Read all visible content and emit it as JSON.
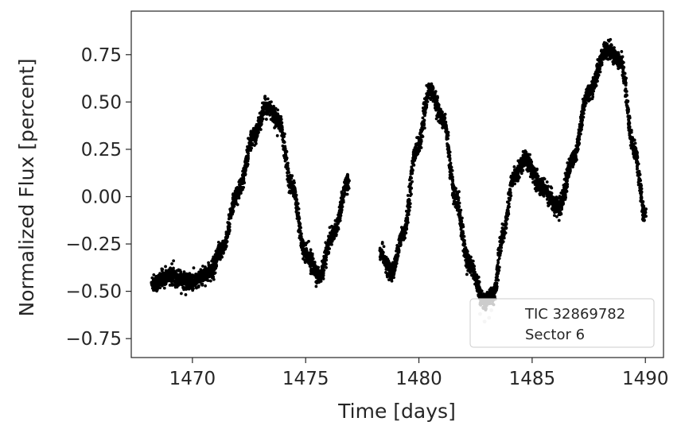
{
  "chart_data": {
    "type": "scatter",
    "title": "",
    "xlabel": "Time [days]",
    "ylabel": "Normalized Flux [percent]",
    "xlim": [
      1467.3,
      1490.8
    ],
    "ylim": [
      -0.85,
      0.98
    ],
    "x_ticks": [
      1470,
      1475,
      1480,
      1485,
      1490
    ],
    "x_tick_labels": [
      "1470",
      "1475",
      "1480",
      "1485",
      "1490"
    ],
    "y_ticks": [
      0.75,
      0.5,
      0.25,
      0.0,
      -0.25,
      -0.5,
      -0.75
    ],
    "y_tick_labels": [
      "0.75",
      "0.50",
      "0.25",
      "0.00",
      "−0.25",
      "−0.50",
      "−0.75"
    ],
    "grid": false,
    "legend": {
      "placement": "lower-right",
      "entries": [
        "TIC 32869782",
        "Sector 6"
      ]
    },
    "colors": {
      "points": "#000000",
      "highlight": "#cccccc",
      "axis": "#262626"
    },
    "series": [
      {
        "marker": "dot",
        "x": [
          1468.2,
          1469.0,
          1470.0,
          1470.8,
          1471.3,
          1472.0,
          1472.7,
          1473.3,
          1473.8,
          1474.4,
          1475.0,
          1475.6,
          1476.2,
          1476.9,
          1478.3,
          1478.8,
          1479.3,
          1479.9,
          1480.5,
          1481.1,
          1481.6,
          1482.2,
          1482.9,
          1483.3,
          1483.7,
          1484.2,
          1484.7,
          1485.4,
          1486.2,
          1486.8,
          1487.5,
          1488.3,
          1488.9,
          1489.5,
          1490.0
        ],
        "y": [
          -0.46,
          -0.42,
          -0.45,
          -0.4,
          -0.28,
          0.02,
          0.32,
          0.48,
          0.4,
          0.05,
          -0.3,
          -0.42,
          -0.2,
          0.08,
          -0.3,
          -0.4,
          -0.2,
          0.25,
          0.56,
          0.4,
          0.0,
          -0.35,
          -0.55,
          -0.52,
          -0.2,
          0.1,
          0.2,
          0.05,
          -0.06,
          0.2,
          0.55,
          0.78,
          0.72,
          0.25,
          -0.1
        ]
      }
    ],
    "highlight_points": {
      "x": [
        1482.7,
        1482.9,
        1483.1,
        1483.2
      ],
      "y": [
        -0.62,
        -0.66,
        -0.64,
        -0.6
      ]
    }
  }
}
